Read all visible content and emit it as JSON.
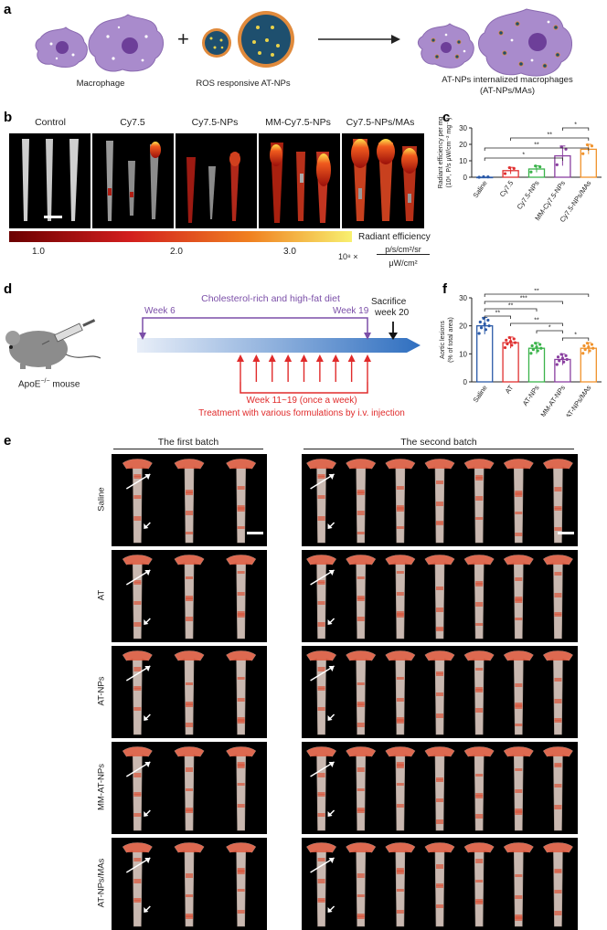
{
  "panel_a": {
    "label": "a",
    "macrophage_label": "Macrophage",
    "plus": "+",
    "nps_label": "ROS responsive AT-NPs",
    "result_line1": "AT-NPs internalized macrophages",
    "result_line2": "(AT-NPs/MAs)",
    "colors": {
      "cell": "#9f7fc2",
      "cell_dark": "#7a53a6",
      "np_shell": "#e08a3c",
      "np_core": "#1e4f6e"
    }
  },
  "panel_b": {
    "label": "b",
    "groups": [
      "Control",
      "Cy7.5",
      "Cy7.5-NPs",
      "MM-Cy7.5-NPs",
      "Cy7.5-NPs/MAs"
    ],
    "colorbar_ticks": [
      "1.0",
      "2.0",
      "3.0"
    ],
    "unit_title": "Radiant efficiency",
    "unit_prefix": "10⁸ ×",
    "unit_numerator": "p/s/cm²/sr",
    "unit_denominator": "μW/cm²"
  },
  "panel_c": {
    "label": "c",
    "chart_data": {
      "type": "bar",
      "ylabel_line1": "Radiant efficiency per mg",
      "ylabel_line2": "(10⁶, P/s μW/cm⁻² mg⁻¹)",
      "categories": [
        "Saline",
        "Cy7.5",
        "Cy7.5-NPs",
        "MM-Cy7.5-NPs",
        "Cy7.5-NPs/MAs"
      ],
      "values": [
        0,
        4,
        5,
        13,
        17
      ],
      "errors": [
        0,
        2,
        2,
        6,
        3
      ],
      "colors": [
        "#2b5aa8",
        "#e03030",
        "#3ab34a",
        "#8a3fa0",
        "#f0922b"
      ],
      "ylim": [
        0,
        30
      ],
      "yticks": [
        "0",
        "10",
        "20",
        "30"
      ],
      "significance": [
        {
          "from": 3,
          "to": 4,
          "mark": "*"
        },
        {
          "from": 1,
          "to": 4,
          "mark": "**"
        },
        {
          "from": 0,
          "to": 4,
          "mark": "**"
        },
        {
          "from": 0,
          "to": 3,
          "mark": "*"
        }
      ]
    }
  },
  "panel_d": {
    "label": "d",
    "mouse_label": "ApoE",
    "mouse_sup": "−/−",
    "mouse_suffix": " mouse",
    "diet_label": "Cholesterol-rich and high-fat diet",
    "week6": "Week 6",
    "week19": "Week 19",
    "sacrifice_line1": "Sacrifice",
    "sacrifice_line2": "week 20",
    "treatment_line1": "Week 11~19 (once a week)",
    "treatment_line2": "Treatment with various formulations by i.v. injection",
    "colors": {
      "diet": "#7b4fa8",
      "treatment": "#e02b2b",
      "timeline": "#2f6fc0"
    }
  },
  "panel_f": {
    "label": "f",
    "chart_data": {
      "type": "bar",
      "ylabel_line1": "Aortic lesions",
      "ylabel_line2": "(% of total area)",
      "categories": [
        "Saline",
        "AT",
        "AT-NPs",
        "MM-AT-NPs",
        "AT-NPs/MAs"
      ],
      "values": [
        20,
        14,
        12,
        8,
        12
      ],
      "errors": [
        3,
        2,
        2,
        2,
        2
      ],
      "colors": [
        "#2b5aa8",
        "#e03030",
        "#3ab34a",
        "#8a3fa0",
        "#f0922b"
      ],
      "ylim": [
        0,
        30
      ],
      "yticks": [
        "0",
        "10",
        "20",
        "30"
      ],
      "significance": [
        {
          "from": 0,
          "to": 4,
          "mark": "**"
        },
        {
          "from": 0,
          "to": 3,
          "mark": "***"
        },
        {
          "from": 0,
          "to": 2,
          "mark": "**"
        },
        {
          "from": 0,
          "to": 1,
          "mark": "**"
        },
        {
          "from": 1,
          "to": 3,
          "mark": "**"
        },
        {
          "from": 2,
          "to": 3,
          "mark": "*"
        },
        {
          "from": 3,
          "to": 4,
          "mark": "*"
        }
      ]
    }
  },
  "panel_e": {
    "label": "e",
    "batch1": "The first batch",
    "batch2": "The second batch",
    "rows": [
      "Saline",
      "AT",
      "AT-NPs",
      "MM-AT-NPs",
      "AT-NPs/MAs"
    ]
  }
}
